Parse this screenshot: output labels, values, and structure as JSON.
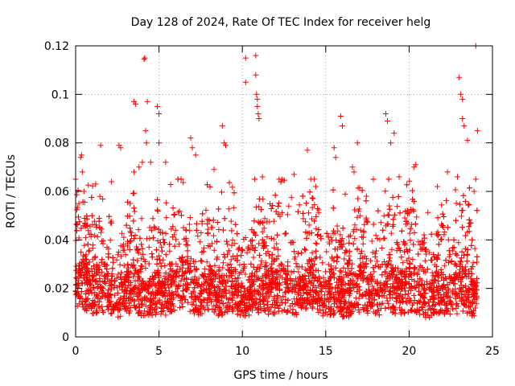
{
  "chart_data": {
    "type": "scatter",
    "title": "Day 128 of 2024, Rate Of TEC Index for receiver helg",
    "xlabel": "GPS time / hours",
    "ylabel": "ROTI / TECUs",
    "xlim": [
      0,
      25
    ],
    "ylim": [
      0,
      0.12
    ],
    "xticks": [
      0,
      5,
      10,
      15,
      20,
      25
    ],
    "xtick_labels": [
      "0",
      "5",
      "10",
      "15",
      "20",
      "25"
    ],
    "yticks": [
      0,
      0.02,
      0.04,
      0.06,
      0.08,
      0.1,
      0.12
    ],
    "ytick_labels": [
      "0",
      "0.02",
      "0.04",
      "0.06",
      "0.08",
      "0.1",
      "0.12"
    ],
    "grid": true,
    "marker": "plus",
    "series": [
      {
        "name": "ROTI",
        "color": "#ff0000",
        "points": [
          [
            0.2,
            0.055
          ],
          [
            0.3,
            0.074
          ],
          [
            0.35,
            0.075
          ],
          [
            0.4,
            0.068
          ],
          [
            0.5,
            0.06
          ],
          [
            1.2,
            0.063
          ],
          [
            1.5,
            0.079
          ],
          [
            2.6,
            0.079
          ],
          [
            2.7,
            0.078
          ],
          [
            3.5,
            0.068
          ],
          [
            3.5,
            0.097
          ],
          [
            3.6,
            0.096
          ],
          [
            3.8,
            0.07
          ],
          [
            4.0,
            0.072
          ],
          [
            4.1,
            0.1145
          ],
          [
            4.15,
            0.115
          ],
          [
            4.2,
            0.085
          ],
          [
            4.25,
            0.08
          ],
          [
            4.3,
            0.097
          ],
          [
            4.5,
            0.072
          ],
          [
            4.9,
            0.095
          ],
          [
            5.0,
            0.092
          ],
          [
            5.0,
            0.08
          ],
          [
            5.4,
            0.072
          ],
          [
            6.9,
            0.082
          ],
          [
            7.0,
            0.078
          ],
          [
            7.2,
            0.075
          ],
          [
            8.3,
            0.069
          ],
          [
            8.8,
            0.087
          ],
          [
            8.9,
            0.08
          ],
          [
            9.0,
            0.079
          ],
          [
            10.2,
            0.115
          ],
          [
            10.2,
            0.105
          ],
          [
            10.8,
            0.116
          ],
          [
            10.8,
            0.108
          ],
          [
            10.85,
            0.1
          ],
          [
            10.9,
            0.098
          ],
          [
            10.9,
            0.095
          ],
          [
            10.95,
            0.092
          ],
          [
            11.0,
            0.09
          ],
          [
            11.2,
            0.066
          ],
          [
            12.2,
            0.065
          ],
          [
            13.1,
            0.067
          ],
          [
            13.9,
            0.077
          ],
          [
            14.1,
            0.065
          ],
          [
            14.4,
            0.062
          ],
          [
            15.5,
            0.078
          ],
          [
            15.6,
            0.074
          ],
          [
            15.9,
            0.091
          ],
          [
            16.0,
            0.087
          ],
          [
            16.6,
            0.07
          ],
          [
            16.7,
            0.068
          ],
          [
            16.9,
            0.08
          ],
          [
            18.6,
            0.092
          ],
          [
            18.7,
            0.089
          ],
          [
            18.9,
            0.08
          ],
          [
            19.1,
            0.084
          ],
          [
            19.4,
            0.066
          ],
          [
            20.3,
            0.07
          ],
          [
            20.4,
            0.071
          ],
          [
            21.7,
            0.062
          ],
          [
            22.3,
            0.068
          ],
          [
            22.9,
            0.066
          ],
          [
            23.0,
            0.107
          ],
          [
            23.1,
            0.1
          ],
          [
            23.2,
            0.098
          ],
          [
            23.2,
            0.09
          ],
          [
            23.3,
            0.087
          ],
          [
            23.5,
            0.081
          ],
          [
            24.0,
            0.12
          ],
          [
            24.1,
            0.085
          ],
          [
            24.0,
            0.065
          ],
          [
            23.9,
            0.06
          ]
        ],
        "cloud": {
          "description": "dense band of ROTI values recorded every few seconds across the day",
          "typical_low": 0.004,
          "typical_high": 0.045,
          "median": 0.015,
          "start_hour": 0,
          "end_hour": 24.1
        }
      }
    ]
  }
}
